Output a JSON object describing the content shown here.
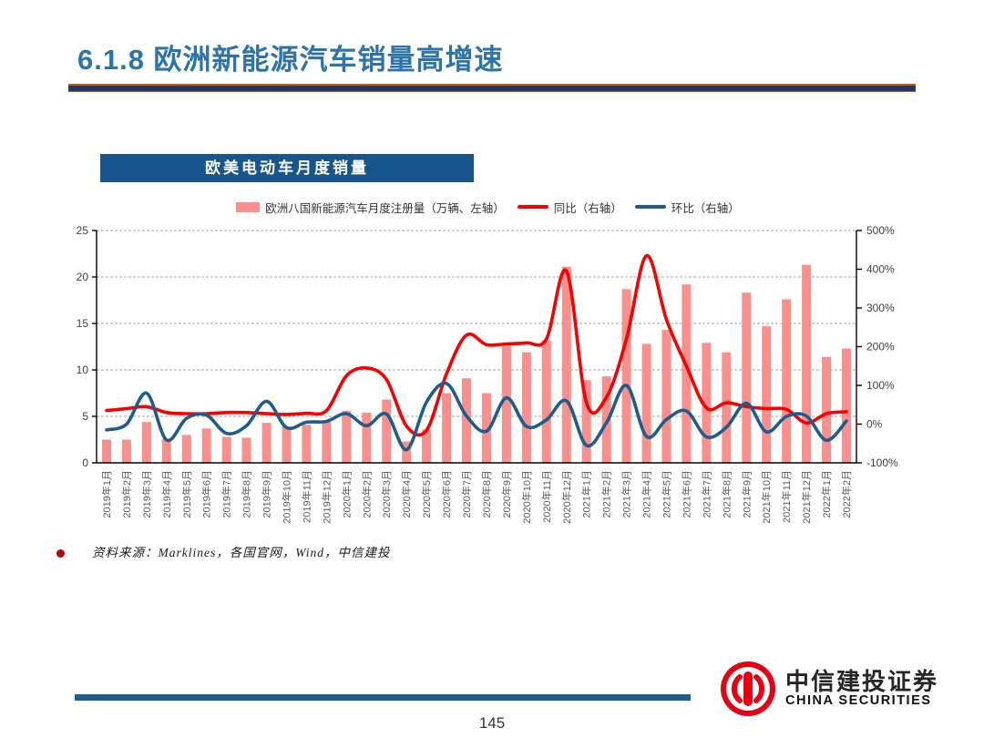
{
  "slide": {
    "title": "6.1.8 欧洲新能源汽车销量高增速",
    "source_note": "资料来源：Marklines，各国官网，Wind，中信建投",
    "page_number": "145"
  },
  "logo": {
    "cn": "中信建投证券",
    "en": "CHINA SECURITIES"
  },
  "chart_header": "欧美电动车月度销量",
  "colors": {
    "title_blue": "#2E74A8",
    "divider_navy": "#1F3864",
    "divider_accent": "#C55A11",
    "header_box_bg": "#17558C",
    "bar_pink": "#F8918E",
    "line_red": "#F80000",
    "line_blue": "#1F5C8B",
    "footer_bar": "#1E5C94",
    "logo_red": "#E60012",
    "grid_gray": "#A6A6A6",
    "axis_black": "#000000",
    "tick_label": "#3F3F3F",
    "x_label": "#595959"
  },
  "chart_data": {
    "type": "combo",
    "title": "欧美电动车月度销量",
    "categories": [
      "2019年1月",
      "2019年2月",
      "2019年3月",
      "2019年4月",
      "2019年5月",
      "2019年6月",
      "2019年7月",
      "2019年8月",
      "2019年9月",
      "2019年10月",
      "2019年11月",
      "2019年12月",
      "2020年1月",
      "2020年2月",
      "2020年3月",
      "2020年4月",
      "2020年5月",
      "2020年6月",
      "2020年7月",
      "2020年8月",
      "2020年9月",
      "2020年10月",
      "2020年11月",
      "2020年12月",
      "2021年1月",
      "2021年2月",
      "2021年3月",
      "2021年4月",
      "2021年5月",
      "2021年6月",
      "2021年7月",
      "2021年8月",
      "2021年9月",
      "2021年10月",
      "2021年11月",
      "2021年12月",
      "2022年1月",
      "2022年2月"
    ],
    "series": [
      {
        "name": "欧洲八国新能源汽车月度注册量（万辆、左轴）",
        "type": "bar",
        "axis": "left",
        "color": "#F8918E",
        "values": [
          2.5,
          2.5,
          4.4,
          2.6,
          3.0,
          3.7,
          2.8,
          2.7,
          4.3,
          3.9,
          4.1,
          4.4,
          5.6,
          5.4,
          6.8,
          2.3,
          3.6,
          7.5,
          9.1,
          7.5,
          12.6,
          11.9,
          13.2,
          21.1,
          8.9,
          9.3,
          18.7,
          12.8,
          14.3,
          19.2,
          12.9,
          11.9,
          18.3,
          14.7,
          17.6,
          21.3,
          11.4,
          12.3
        ]
      },
      {
        "name": "同比（右轴）",
        "type": "line",
        "axis": "right",
        "color": "#F80000",
        "values": [
          35,
          40,
          45,
          30,
          27,
          27,
          30,
          30,
          27,
          25,
          28,
          35,
          125,
          145,
          115,
          -5,
          -16,
          130,
          230,
          205,
          207,
          210,
          220,
          395,
          55,
          70,
          220,
          435,
          270,
          150,
          42,
          55,
          45,
          40,
          38,
          3,
          27,
          32
        ]
      },
      {
        "name": "环比（右轴）",
        "type": "line",
        "axis": "right",
        "color": "#1F5C8B",
        "values": [
          -15,
          0,
          80,
          -41,
          15,
          23,
          -24,
          -4,
          59,
          -9,
          5,
          7,
          27,
          -4,
          26,
          -66,
          57,
          105,
          21,
          -18,
          68,
          -6,
          11,
          60,
          -55,
          4,
          100,
          -32,
          12,
          34,
          -33,
          -8,
          54,
          -20,
          20,
          21,
          -42,
          8
        ]
      }
    ],
    "left_axis": {
      "min": 0,
      "max": 25,
      "ticks": [
        0,
        5,
        10,
        15,
        20,
        25
      ],
      "tick_labels": [
        "0",
        "5",
        "10",
        "15",
        "20",
        "25"
      ]
    },
    "right_axis": {
      "min": -100,
      "max": 500,
      "ticks": [
        -100,
        0,
        100,
        200,
        300,
        400,
        500
      ],
      "tick_labels": [
        "-100%",
        "0%",
        "100%",
        "200%",
        "300%",
        "400%",
        "500%"
      ]
    },
    "grid": "dashed-horizontal",
    "legend_position": "top-center"
  },
  "legend": [
    {
      "type": "bar",
      "label": "欧洲八国新能源汽车月度注册量（万辆、左轴）"
    },
    {
      "type": "line",
      "label": "同比（右轴）"
    },
    {
      "type": "line",
      "label": "环比（右轴）"
    }
  ]
}
